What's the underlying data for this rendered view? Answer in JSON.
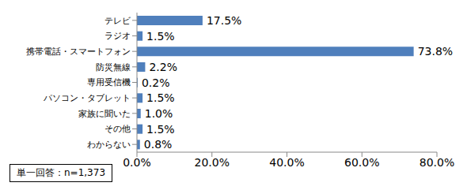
{
  "chart_data": {
    "type": "bar",
    "orientation": "horizontal",
    "categories": [
      "テレビ",
      "ラジオ",
      "携帯電話・スマートフォン",
      "防災無線",
      "専用受信機",
      "パソコン・タブレット",
      "家族に聞いた",
      "その他",
      "わからない"
    ],
    "values": [
      17.5,
      1.5,
      73.8,
      2.2,
      0.2,
      1.5,
      1.0,
      1.5,
      0.8
    ],
    "value_labels": [
      "17.5%",
      "1.5%",
      "73.8%",
      "2.2%",
      "0.2%",
      "1.5%",
      "1.0%",
      "1.5%",
      "0.8%"
    ],
    "data_labels": true,
    "color": "#4f7fbc",
    "xlim": [
      0,
      80
    ],
    "xticks": [
      {
        "value": 0,
        "label": "0.0%"
      },
      {
        "value": 20,
        "label": "20.0%"
      },
      {
        "value": 40,
        "label": "40.0%"
      },
      {
        "value": 60,
        "label": "60.0%"
      },
      {
        "value": 80,
        "label": "80.0%"
      }
    ],
    "grid": false,
    "annotation": "単一回答：n=1,373"
  }
}
